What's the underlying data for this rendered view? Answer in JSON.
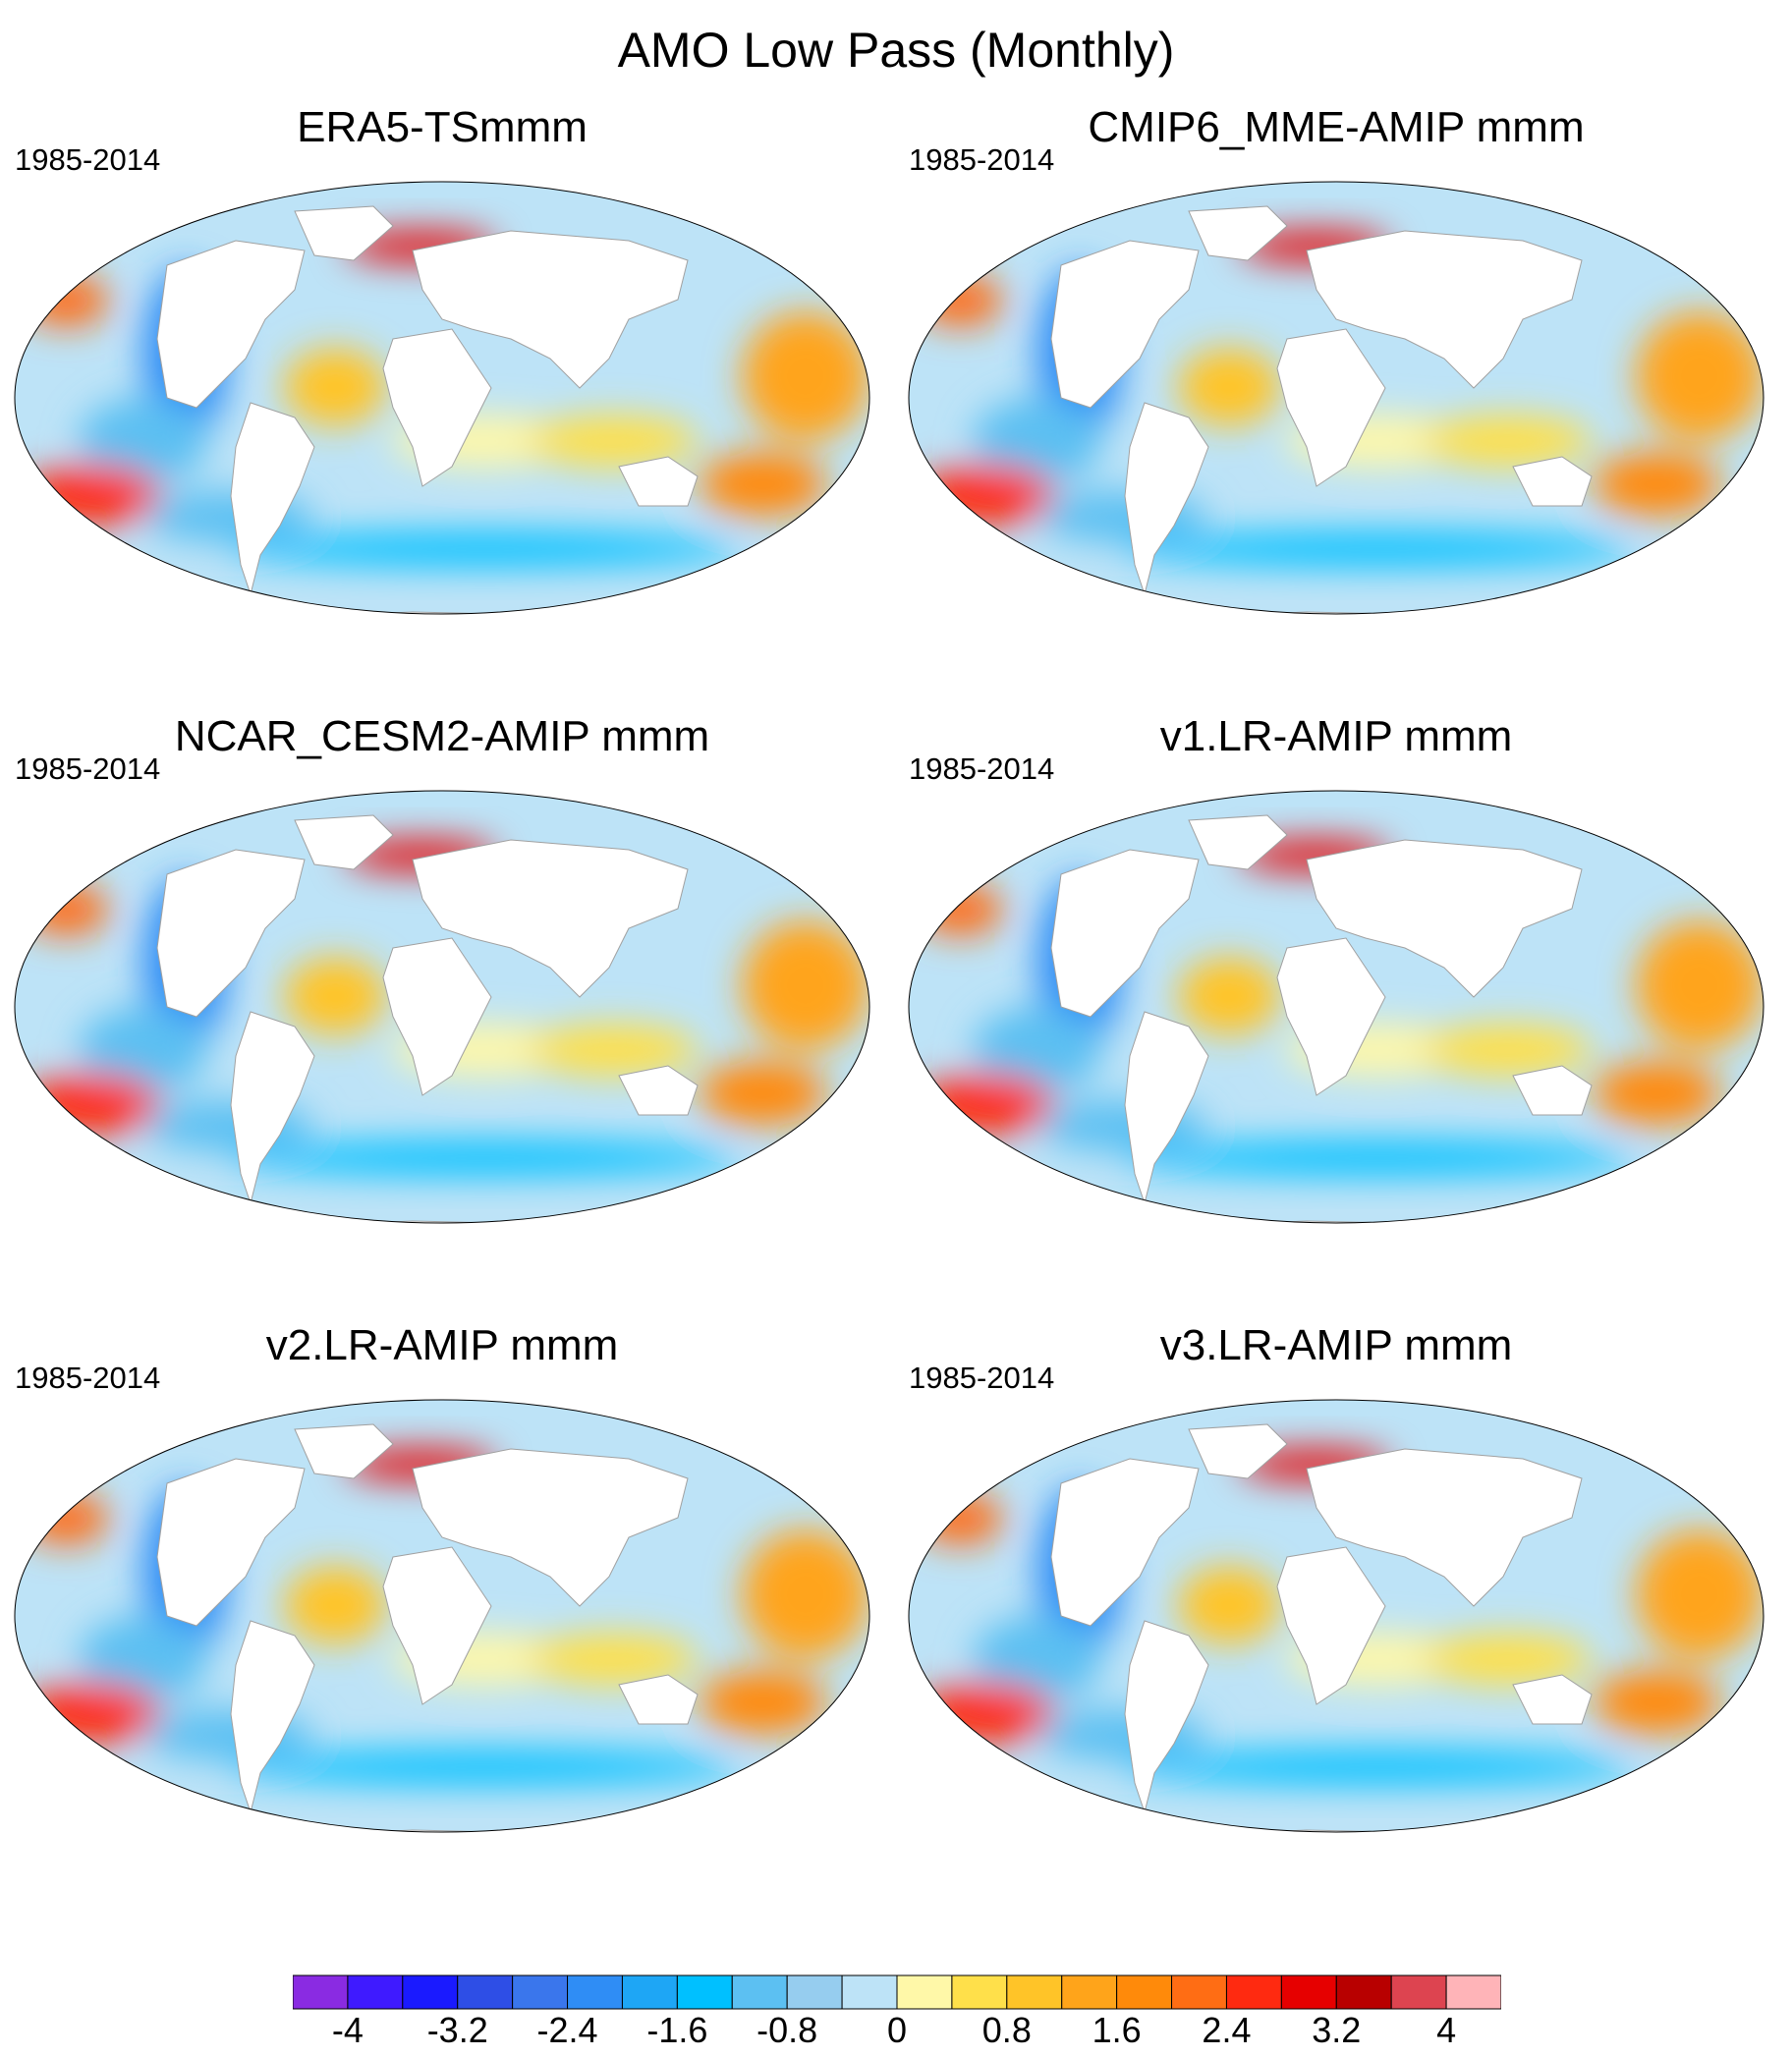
{
  "title": "AMO Low Pass (Monthly)",
  "panels": [
    {
      "title": "ERA5-TSmmm",
      "period": "1985-2014"
    },
    {
      "title": "CMIP6_MME-AMIP  mmm",
      "period": "1985-2014"
    },
    {
      "title": "NCAR_CESM2-AMIP  mmm",
      "period": "1985-2014"
    },
    {
      "title": "v1.LR-AMIP  mmm",
      "period": "1985-2014"
    },
    {
      "title": "v2.LR-AMIP  mmm",
      "period": "1985-2014"
    },
    {
      "title": "v3.LR-AMIP  mmm",
      "period": "1985-2014"
    }
  ],
  "colorbar": {
    "colors": [
      "#8a2be2",
      "#3f1aff",
      "#1a1aff",
      "#2e4ee6",
      "#3a76ec",
      "#2f8df5",
      "#1ea6f5",
      "#00c0ff",
      "#5cc0f2",
      "#96cdef",
      "#bde3f7",
      "#fff8a8",
      "#ffe04a",
      "#ffc428",
      "#ffa41a",
      "#ff8a0a",
      "#ff6d14",
      "#ff2a10",
      "#e60000",
      "#b80000",
      "#dd4450",
      "#ffb4b8"
    ],
    "labels": [
      "-4",
      "-3.2",
      "-2.4",
      "-1.6",
      "-0.8",
      "0",
      "0.8",
      "1.6",
      "2.4",
      "3.2",
      "4"
    ]
  },
  "land_color": "#ffffff",
  "coast_color": "#a0a0a0"
}
